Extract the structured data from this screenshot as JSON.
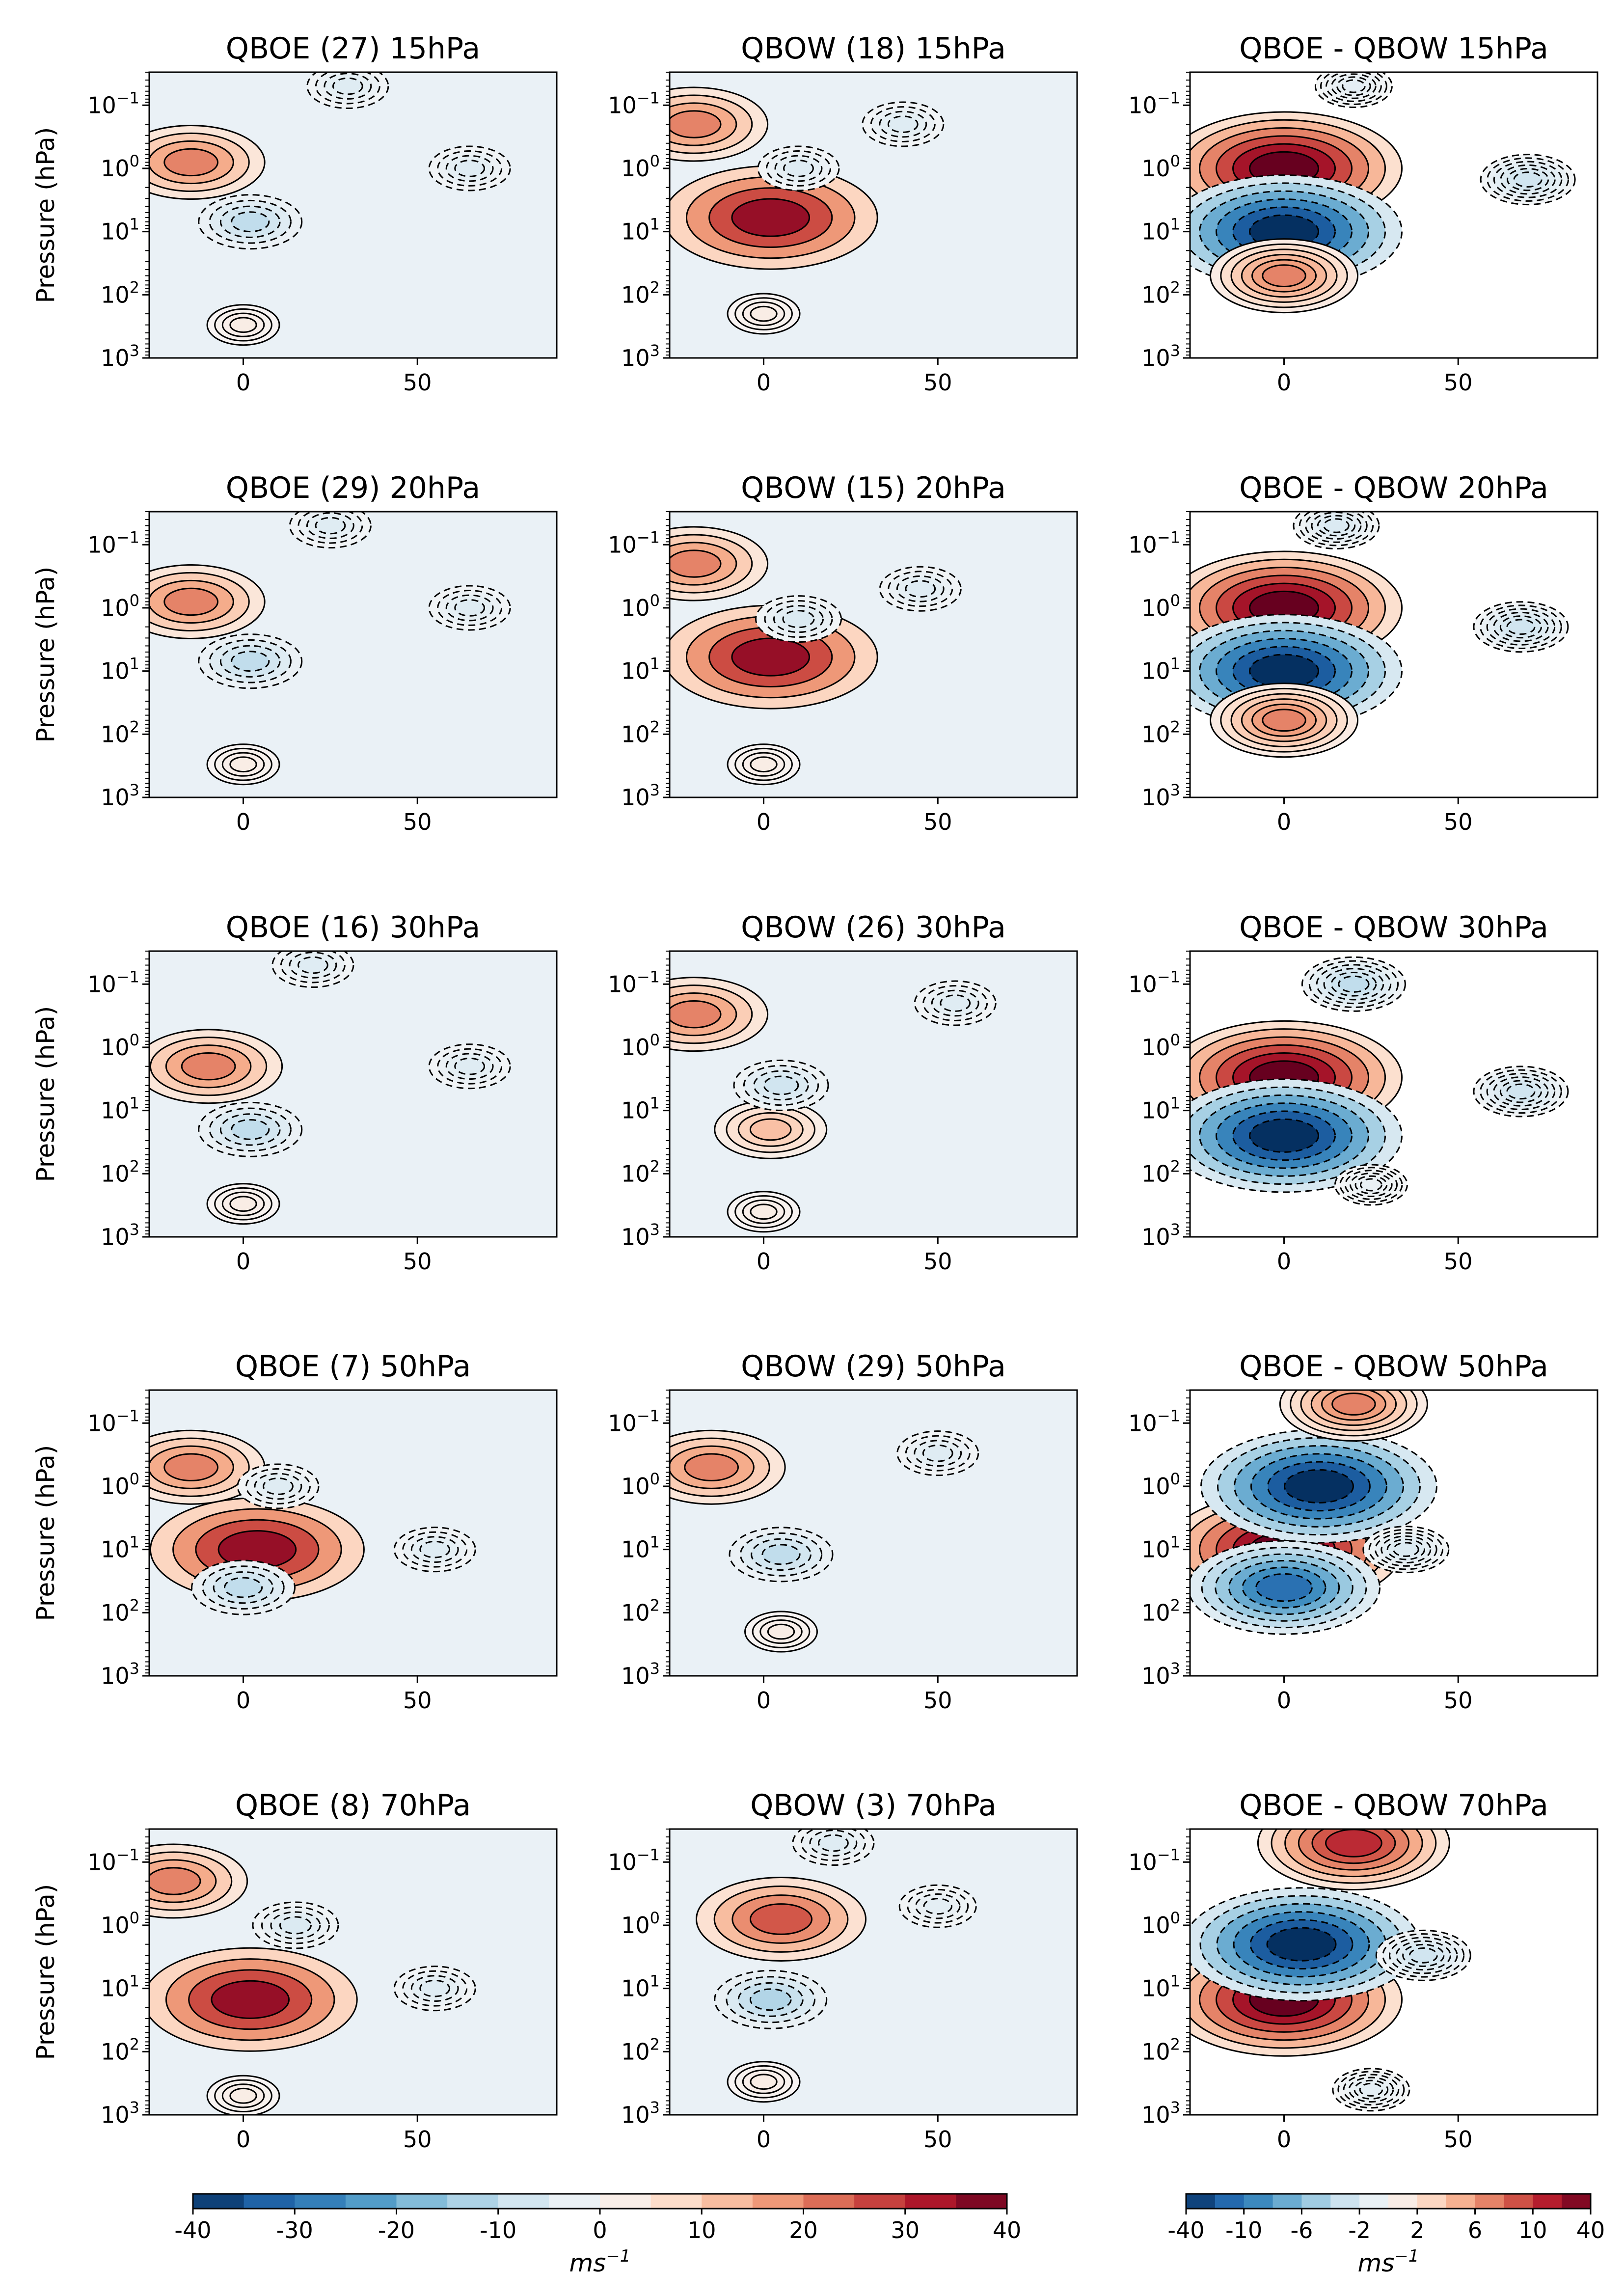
{
  "figure": {
    "ylabel": "Pressure (hPa)",
    "colorbar_left": {
      "ticks": [
        "-40",
        "-30",
        "-20",
        "-10",
        "0",
        "10",
        "20",
        "30",
        "40"
      ],
      "unit": "ms",
      "unit_exp": "−1"
    },
    "colorbar_right": {
      "ticks": [
        "-40",
        "-10",
        "-6",
        "-2",
        "2",
        "6",
        "10",
        "40"
      ],
      "unit": "ms",
      "unit_exp": "−1"
    }
  },
  "chart_data": [
    {
      "type": "heatmap",
      "title": "QBOE (27) 15hPa",
      "xlabel": "",
      "ylabel": "Pressure (hPa)",
      "xlim": [
        -27,
        90
      ],
      "ylim": [
        1000,
        0.03
      ],
      "xticks": [
        "0",
        "50"
      ],
      "yscale": "log",
      "ytick_values": [
        0.1,
        1,
        10,
        100,
        1000
      ],
      "colormap": "RdBu_r",
      "contours": "solid positive, dashed negative",
      "features": [
        {
          "x": -15,
          "p": 0.8,
          "value": 20
        },
        {
          "x": 2,
          "p": 7,
          "value": -10
        },
        {
          "x": 30,
          "p": 0.05,
          "value": -5
        },
        {
          "x": 65,
          "p": 1,
          "value": -5
        },
        {
          "x": 0,
          "p": 300,
          "value": 3
        }
      ]
    },
    {
      "type": "heatmap",
      "title": "QBOW (18) 15hPa",
      "xlabel": "",
      "ylabel": "",
      "xlim": [
        -27,
        90
      ],
      "ylim": [
        1000,
        0.03
      ],
      "xticks": [
        "0",
        "50"
      ],
      "yscale": "log",
      "colormap": "RdBu_r",
      "features": [
        {
          "x": -20,
          "p": 0.2,
          "value": 20
        },
        {
          "x": 2,
          "p": 6,
          "value": 35
        },
        {
          "x": 10,
          "p": 1,
          "value": -5
        },
        {
          "x": 40,
          "p": 0.2,
          "value": -5
        },
        {
          "x": 0,
          "p": 200,
          "value": 3
        }
      ]
    },
    {
      "type": "heatmap",
      "title": "QBOE - QBOW 15hPa",
      "xlabel": "",
      "ylabel": "",
      "xlim": [
        -27,
        90
      ],
      "ylim": [
        1000,
        0.03
      ],
      "xticks": [
        "0",
        "50"
      ],
      "yscale": "log",
      "colormap": "RdBu_r",
      "features": [
        {
          "x": 0,
          "p": 1,
          "value": 40
        },
        {
          "x": 0,
          "p": 10,
          "value": -40
        },
        {
          "x": 0,
          "p": 50,
          "value": 20
        },
        {
          "x": 70,
          "p": 1.5,
          "value": -8
        },
        {
          "x": 20,
          "p": 0.05,
          "value": -4
        }
      ]
    },
    {
      "type": "heatmap",
      "title": "QBOE (29) 20hPa",
      "xlabel": "",
      "ylabel": "Pressure (hPa)",
      "xlim": [
        -27,
        90
      ],
      "ylim": [
        1000,
        0.03
      ],
      "xticks": [
        "0",
        "50"
      ],
      "yscale": "log",
      "colormap": "RdBu_r",
      "features": [
        {
          "x": -15,
          "p": 0.8,
          "value": 20
        },
        {
          "x": 2,
          "p": 7,
          "value": -10
        },
        {
          "x": 25,
          "p": 0.05,
          "value": -5
        },
        {
          "x": 65,
          "p": 1,
          "value": -5
        },
        {
          "x": 0,
          "p": 300,
          "value": 3
        }
      ]
    },
    {
      "type": "heatmap",
      "title": "QBOW (15) 20hPa",
      "xlabel": "",
      "ylabel": "",
      "xlim": [
        -27,
        90
      ],
      "ylim": [
        1000,
        0.03
      ],
      "xticks": [
        "0",
        "50"
      ],
      "yscale": "log",
      "colormap": "RdBu_r",
      "features": [
        {
          "x": -20,
          "p": 0.2,
          "value": 20
        },
        {
          "x": 2,
          "p": 6,
          "value": 35
        },
        {
          "x": 10,
          "p": 1.5,
          "value": -6
        },
        {
          "x": 45,
          "p": 0.5,
          "value": -5
        },
        {
          "x": 0,
          "p": 300,
          "value": 3
        }
      ]
    },
    {
      "type": "heatmap",
      "title": "QBOE - QBOW 20hPa",
      "xlabel": "",
      "ylabel": "",
      "xlim": [
        -27,
        90
      ],
      "ylim": [
        1000,
        0.03
      ],
      "xticks": [
        "0",
        "50"
      ],
      "yscale": "log",
      "colormap": "RdBu_r",
      "features": [
        {
          "x": 0,
          "p": 1,
          "value": 40
        },
        {
          "x": 0,
          "p": 10,
          "value": -40
        },
        {
          "x": 0,
          "p": 60,
          "value": 20
        },
        {
          "x": 68,
          "p": 2,
          "value": -8
        },
        {
          "x": 15,
          "p": 0.05,
          "value": -6
        }
      ]
    },
    {
      "type": "heatmap",
      "title": "QBOE (16) 30hPa",
      "xlabel": "",
      "ylabel": "Pressure (hPa)",
      "xlim": [
        -27,
        90
      ],
      "ylim": [
        1000,
        0.03
      ],
      "xticks": [
        "0",
        "50"
      ],
      "yscale": "log",
      "colormap": "RdBu_r",
      "features": [
        {
          "x": -10,
          "p": 2,
          "value": 20
        },
        {
          "x": 2,
          "p": 20,
          "value": -10
        },
        {
          "x": 20,
          "p": 0.05,
          "value": -5
        },
        {
          "x": 65,
          "p": 2,
          "value": -5
        },
        {
          "x": 0,
          "p": 300,
          "value": 3
        }
      ]
    },
    {
      "type": "heatmap",
      "title": "QBOW (26) 30hPa",
      "xlabel": "",
      "ylabel": "",
      "xlim": [
        -27,
        90
      ],
      "ylim": [
        1000,
        0.03
      ],
      "xticks": [
        "0",
        "50"
      ],
      "yscale": "log",
      "colormap": "RdBu_r",
      "features": [
        {
          "x": -20,
          "p": 0.3,
          "value": 20
        },
        {
          "x": 2,
          "p": 20,
          "value": 12
        },
        {
          "x": 5,
          "p": 4,
          "value": -8
        },
        {
          "x": 55,
          "p": 0.2,
          "value": -5
        },
        {
          "x": 0,
          "p": 400,
          "value": 3
        }
      ]
    },
    {
      "type": "heatmap",
      "title": "QBOE - QBOW 30hPa",
      "xlabel": "",
      "ylabel": "",
      "xlim": [
        -27,
        90
      ],
      "ylim": [
        1000,
        0.03
      ],
      "xticks": [
        "0",
        "50"
      ],
      "yscale": "log",
      "colormap": "RdBu_r",
      "features": [
        {
          "x": 0,
          "p": 3,
          "value": 40
        },
        {
          "x": 0,
          "p": 25,
          "value": -40
        },
        {
          "x": 20,
          "p": 0.1,
          "value": -10
        },
        {
          "x": 68,
          "p": 5,
          "value": -8
        },
        {
          "x": 25,
          "p": 150,
          "value": -3
        }
      ]
    },
    {
      "type": "heatmap",
      "title": "QBOE (7) 50hPa",
      "xlabel": "",
      "ylabel": "Pressure (hPa)",
      "xlim": [
        -27,
        90
      ],
      "ylim": [
        1000,
        0.03
      ],
      "xticks": [
        "0",
        "50"
      ],
      "yscale": "log",
      "colormap": "RdBu_r",
      "features": [
        {
          "x": -15,
          "p": 0.5,
          "value": 20
        },
        {
          "x": 4,
          "p": 10,
          "value": 35
        },
        {
          "x": 10,
          "p": 1,
          "value": -5
        },
        {
          "x": 0,
          "p": 40,
          "value": -10
        },
        {
          "x": 55,
          "p": 10,
          "value": -5
        }
      ]
    },
    {
      "type": "heatmap",
      "title": "QBOW (29) 50hPa",
      "xlabel": "",
      "ylabel": "",
      "xlim": [
        -27,
        90
      ],
      "ylim": [
        1000,
        0.03
      ],
      "xticks": [
        "0",
        "50"
      ],
      "yscale": "log",
      "colormap": "RdBu_r",
      "features": [
        {
          "x": -15,
          "p": 0.5,
          "value": 20
        },
        {
          "x": 5,
          "p": 12,
          "value": -10
        },
        {
          "x": 50,
          "p": 0.3,
          "value": -5
        },
        {
          "x": 5,
          "p": 200,
          "value": 3
        }
      ]
    },
    {
      "type": "heatmap",
      "title": "QBOE - QBOW 50hPa",
      "xlabel": "",
      "ylabel": "",
      "xlim": [
        -27,
        90
      ],
      "ylim": [
        1000,
        0.03
      ],
      "xticks": [
        "0",
        "50"
      ],
      "yscale": "log",
      "colormap": "RdBu_r",
      "features": [
        {
          "x": 0,
          "p": 10,
          "value": 40
        },
        {
          "x": 10,
          "p": 1,
          "value": -40
        },
        {
          "x": 0,
          "p": 40,
          "value": -30
        },
        {
          "x": 20,
          "p": 0.05,
          "value": 20
        },
        {
          "x": 35,
          "p": 10,
          "value": -6
        }
      ]
    },
    {
      "type": "heatmap",
      "title": "QBOE (8) 70hPa",
      "xlabel": "",
      "ylabel": "Pressure (hPa)",
      "xlim": [
        -27,
        90
      ],
      "ylim": [
        1000,
        0.03
      ],
      "xticks": [
        "0",
        "50"
      ],
      "yscale": "log",
      "colormap": "RdBu_r",
      "features": [
        {
          "x": -20,
          "p": 0.2,
          "value": 20
        },
        {
          "x": 2,
          "p": 15,
          "value": 35
        },
        {
          "x": 15,
          "p": 1,
          "value": -6
        },
        {
          "x": 55,
          "p": 10,
          "value": -5
        },
        {
          "x": 0,
          "p": 500,
          "value": 3
        }
      ]
    },
    {
      "type": "heatmap",
      "title": "QBOW (3) 70hPa",
      "xlabel": "",
      "ylabel": "",
      "xlim": [
        -27,
        90
      ],
      "ylim": [
        1000,
        0.03
      ],
      "xticks": [
        "0",
        "50"
      ],
      "yscale": "log",
      "colormap": "RdBu_r",
      "features": [
        {
          "x": 5,
          "p": 0.8,
          "value": 25
        },
        {
          "x": 2,
          "p": 15,
          "value": -12
        },
        {
          "x": 20,
          "p": 0.05,
          "value": -5
        },
        {
          "x": 50,
          "p": 0.5,
          "value": -4
        },
        {
          "x": 0,
          "p": 300,
          "value": 3
        }
      ]
    },
    {
      "type": "heatmap",
      "title": "QBOE - QBOW 70hPa",
      "xlabel": "",
      "ylabel": "",
      "xlim": [
        -27,
        90
      ],
      "ylim": [
        1000,
        0.03
      ],
      "xticks": [
        "0",
        "50"
      ],
      "yscale": "log",
      "colormap": "RdBu_r",
      "features": [
        {
          "x": 0,
          "p": 15,
          "value": 40
        },
        {
          "x": 5,
          "p": 2,
          "value": -40
        },
        {
          "x": 20,
          "p": 0.05,
          "value": 30
        },
        {
          "x": 40,
          "p": 3,
          "value": -8
        },
        {
          "x": 25,
          "p": 400,
          "value": -4
        }
      ]
    }
  ]
}
